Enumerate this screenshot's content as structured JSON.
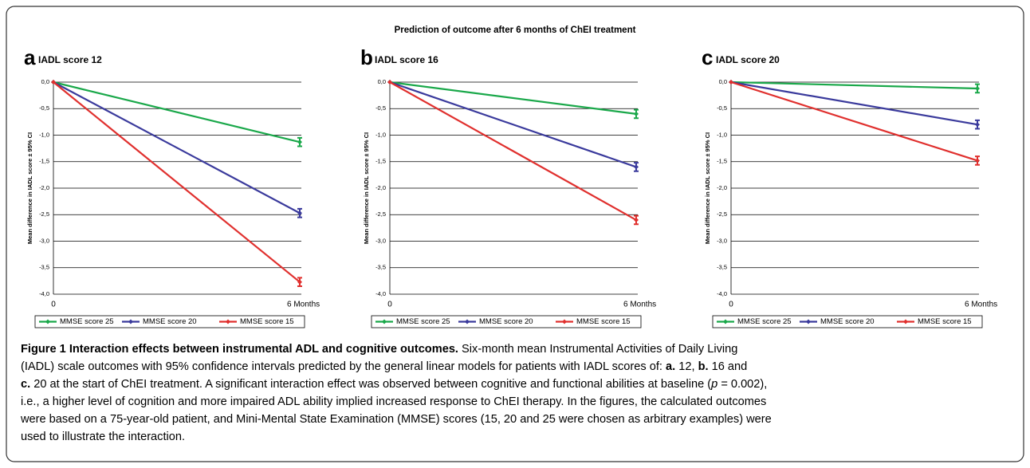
{
  "figure_title": "Prediction of outcome after 6 months of ChEI treatment",
  "chart_data": [
    {
      "type": "line",
      "panel": "a",
      "title": "IADL score 12",
      "ylabel": "Mean difference in IADL score ± 95% CI",
      "categories": [
        "0",
        "6 Months"
      ],
      "series": [
        {
          "name": "MMSE score 25",
          "color": "#1aa84a",
          "values": [
            0,
            -1.13
          ],
          "errors": [
            null,
            0.08
          ]
        },
        {
          "name": "MMSE score 20",
          "color": "#3a3a9c",
          "values": [
            0,
            -2.47
          ],
          "errors": [
            null,
            0.08
          ]
        },
        {
          "name": "MMSE score 15",
          "color": "#e0302e",
          "values": [
            0,
            -3.77
          ],
          "errors": [
            null,
            0.08
          ]
        }
      ],
      "ylim": [
        -4,
        0
      ],
      "yticks": [
        {
          "value": 0,
          "label": "0,0"
        },
        {
          "value": -0.5,
          "label": "-0,5"
        },
        {
          "value": -1,
          "label": "-1,0"
        },
        {
          "value": -1.5,
          "label": "-1,5"
        },
        {
          "value": -2,
          "label": "-2,0"
        },
        {
          "value": -2.5,
          "label": "-2,5"
        },
        {
          "value": -3,
          "label": "-3,0"
        },
        {
          "value": -3.5,
          "label": "-3,5"
        },
        {
          "value": -4,
          "label": "-4,0"
        }
      ],
      "grid": true
    },
    {
      "type": "line",
      "panel": "b",
      "title": "IADL score 16",
      "ylabel": "Mean difference in IADL score ± 95% CI",
      "categories": [
        "0",
        "6 Months"
      ],
      "series": [
        {
          "name": "MMSE score 25",
          "color": "#1aa84a",
          "values": [
            0,
            -0.6
          ],
          "errors": [
            null,
            0.08
          ]
        },
        {
          "name": "MMSE score 20",
          "color": "#3a3a9c",
          "values": [
            0,
            -1.6
          ],
          "errors": [
            null,
            0.08
          ]
        },
        {
          "name": "MMSE score 15",
          "color": "#e0302e",
          "values": [
            0,
            -2.6
          ],
          "errors": [
            null,
            0.08
          ]
        }
      ],
      "ylim": [
        -4,
        0
      ],
      "yticks": [
        {
          "value": 0,
          "label": "0,0"
        },
        {
          "value": -0.5,
          "label": "-0,5"
        },
        {
          "value": -1,
          "label": "-1,0"
        },
        {
          "value": -1.5,
          "label": "-1,5"
        },
        {
          "value": -2,
          "label": "-2,0"
        },
        {
          "value": -2.5,
          "label": "-2,5"
        },
        {
          "value": -3,
          "label": "-3,0"
        },
        {
          "value": -3.5,
          "label": "-3,5"
        },
        {
          "value": -4,
          "label": "-4,0"
        }
      ],
      "grid": true
    },
    {
      "type": "line",
      "panel": "c",
      "title": "IADL score 20",
      "ylabel": "Mean difference in IADL score ± 95% CI",
      "categories": [
        "0",
        "6 Months"
      ],
      "series": [
        {
          "name": "MMSE score 25",
          "color": "#1aa84a",
          "values": [
            0,
            -0.12
          ],
          "errors": [
            null,
            0.08
          ]
        },
        {
          "name": "MMSE score 20",
          "color": "#3a3a9c",
          "values": [
            0,
            -0.8
          ],
          "errors": [
            null,
            0.08
          ]
        },
        {
          "name": "MMSE score 15",
          "color": "#e0302e",
          "values": [
            0,
            -1.48
          ],
          "errors": [
            null,
            0.08
          ]
        }
      ],
      "ylim": [
        -4,
        0
      ],
      "yticks": [
        {
          "value": 0,
          "label": "0,0"
        },
        {
          "value": -0.5,
          "label": "-0,5"
        },
        {
          "value": -1,
          "label": "-1,0"
        },
        {
          "value": -1.5,
          "label": "-1,5"
        },
        {
          "value": -2,
          "label": "-2,0"
        },
        {
          "value": -2.5,
          "label": "-2,5"
        },
        {
          "value": -3,
          "label": "-3,0"
        },
        {
          "value": -3.5,
          "label": "-3,5"
        },
        {
          "value": -4,
          "label": "-4,0"
        }
      ],
      "grid": true
    }
  ],
  "caption": [
    [
      {
        "text": "Figure 1 Interaction effects between instrumental ADL and cognitive outcomes.",
        "bold": true
      },
      {
        "text": " Six-month mean Instrumental Activities of Daily Living"
      }
    ],
    [
      {
        "text": "(IADL) scale outcomes with 95% confidence intervals predicted by the general linear models for patients with IADL scores of: "
      },
      {
        "text": "a.",
        "bold": true
      },
      {
        "text": " 12, "
      },
      {
        "text": "b.",
        "bold": true
      },
      {
        "text": " 16 and"
      }
    ],
    [
      {
        "text": "c.",
        "bold": true
      },
      {
        "text": " 20 at the start of ChEI treatment. A significant interaction effect was observed between cognitive and functional abilities at baseline ("
      },
      {
        "text": "p",
        "italic": true
      },
      {
        "text": " = 0.002),"
      }
    ],
    [
      {
        "text": "i.e., a higher level of cognition and more impaired ADL ability implied increased response to ChEI therapy. In the figures, the calculated outcomes"
      }
    ],
    [
      {
        "text": "were based on a 75-year-old patient, and Mini-Mental State Examination (MMSE) scores (15, 20 and 25 were chosen as arbitrary examples) were"
      }
    ],
    [
      {
        "text": "used to illustrate the interaction."
      }
    ]
  ]
}
